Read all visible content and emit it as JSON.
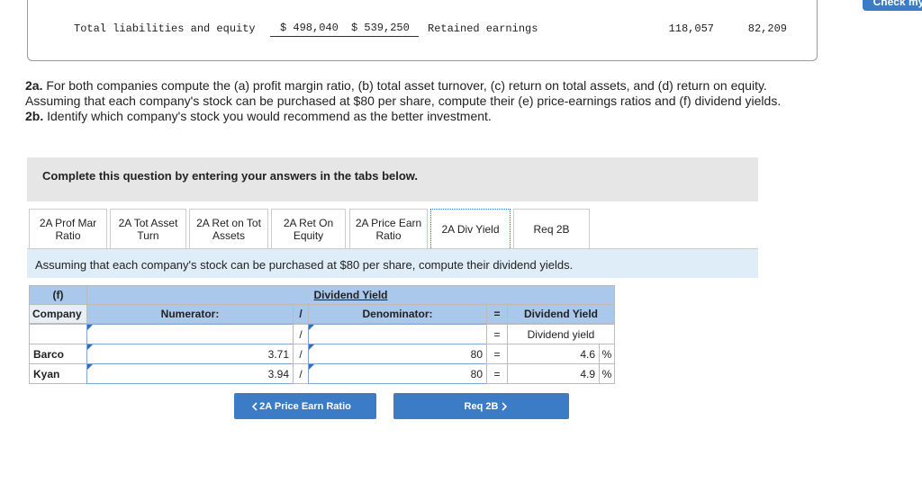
{
  "top_row": {
    "label": "Total liabilities and equity",
    "amount_1": "$ 498,040",
    "amount_2": "$ 539,250",
    "label_2": "Retained earnings",
    "amount_3": "118,057",
    "amount_4": "82,209"
  },
  "check_button": "Check my",
  "question": {
    "part_a": {
      "label": "2a.",
      "text": "For both companies compute the (a) profit margin ratio, (b) total asset turnover, (c) return on total assets, and (d) return on equity. Assuming that each company's stock can be purchased at $80 per share, compute their (e) price-earnings ratios and (f) dividend yields."
    },
    "part_b": {
      "label": "2b.",
      "text": "Identify which company's stock you would recommend as the better investment."
    }
  },
  "instruction": "Complete this question by entering your answers in the tabs below.",
  "tabs": [
    "2A Prof Mar Ratio",
    "2A Tot Asset Turn",
    "2A Ret on Tot Assets",
    "2A Ret On Equity",
    "2A Price Earn Ratio",
    "2A Div Yield",
    "Req 2B"
  ],
  "prompt": "Assuming that each company's stock can be purchased at $80 per share, compute their dividend yields.",
  "table": {
    "part": "(f)",
    "title": "Dividend Yield",
    "header": {
      "company": "Company",
      "numerator": "Numerator:",
      "slash": "/",
      "denominator": "Denominator:",
      "equals": "=",
      "result": "Dividend Yield"
    },
    "rows": [
      {
        "slash": "/",
        "equals": "=",
        "result": "Dividend yield"
      },
      {
        "company": "Barco",
        "numerator": 3.71,
        "slash": "/",
        "denominator": 80,
        "equals": "=",
        "result": 4.6,
        "unit": "%"
      },
      {
        "company": "Kyan",
        "numerator": 3.94,
        "slash": "/",
        "denominator": 80,
        "equals": "=",
        "result": 4.9,
        "unit": "%"
      }
    ]
  },
  "nav": {
    "prev": "2A Price Earn Ratio",
    "next": "Req 2B"
  }
}
